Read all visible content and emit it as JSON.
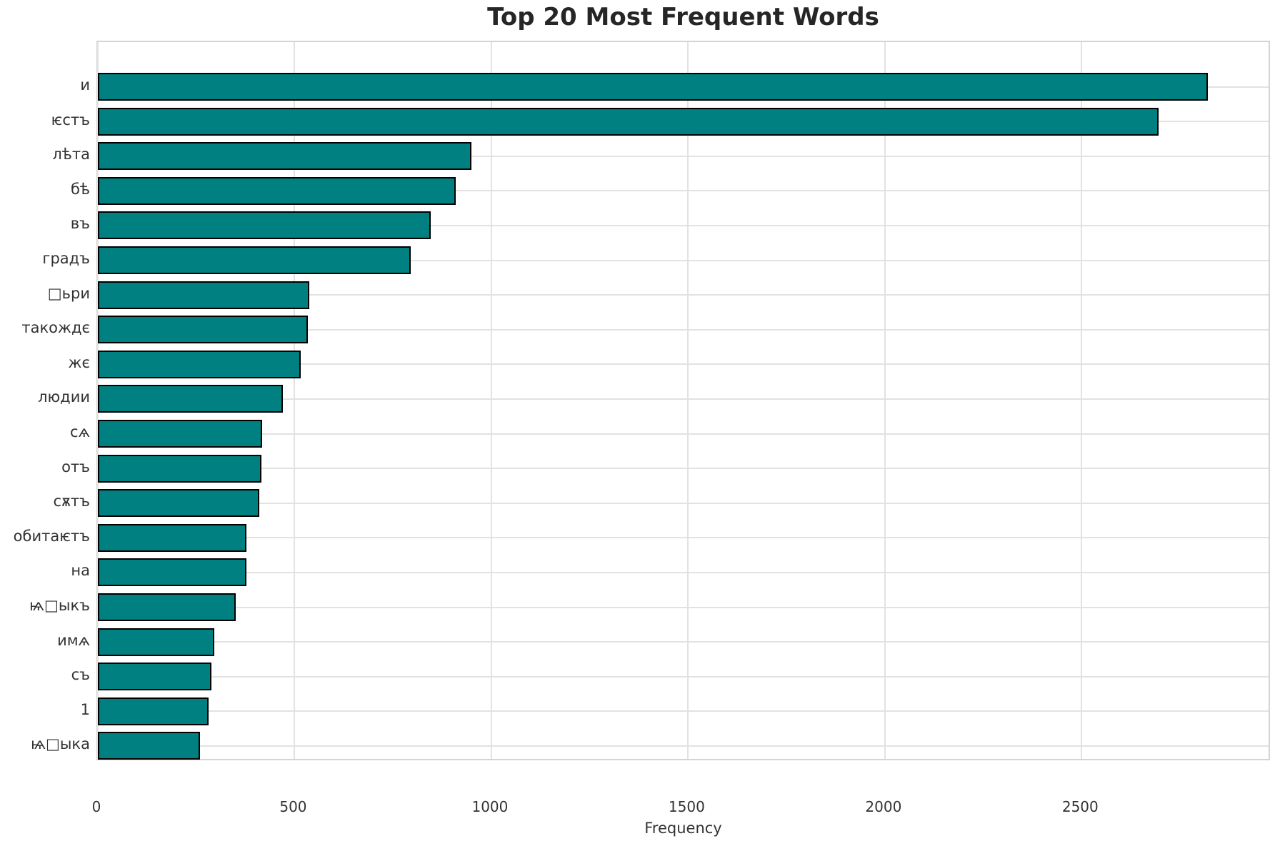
{
  "chart_data": {
    "type": "bar",
    "orientation": "horizontal",
    "title": "Top 20 Most Frequent Words",
    "xlabel": "Frequency",
    "categories": [
      "и",
      "ѥстъ",
      "лѣта",
      "бѣ",
      "въ",
      "градъ",
      "□ьри",
      "такождє",
      "жє",
      "людии",
      "сѧ",
      "отъ",
      "сѫтъ",
      "обитаѥтъ",
      "на",
      "ѩ□ыкъ",
      "имѧ",
      "съ",
      "1",
      "ѩ□ыка"
    ],
    "values": [
      2820,
      2695,
      950,
      910,
      845,
      795,
      537,
      533,
      515,
      470,
      417,
      415,
      410,
      378,
      377,
      351,
      295,
      289,
      282,
      260
    ],
    "xticks": [
      0,
      500,
      1000,
      1500,
      2000,
      2500
    ],
    "xlim": [
      0,
      2975
    ],
    "grid": "both",
    "legend": "none",
    "bar_color": "#008080",
    "bar_edge_color": "#000000",
    "grid_color": "#e2e2e2",
    "spine_color": "#d4d4d4",
    "text_color": "#333333",
    "title_color": "#262626",
    "background": "#ffffff"
  }
}
